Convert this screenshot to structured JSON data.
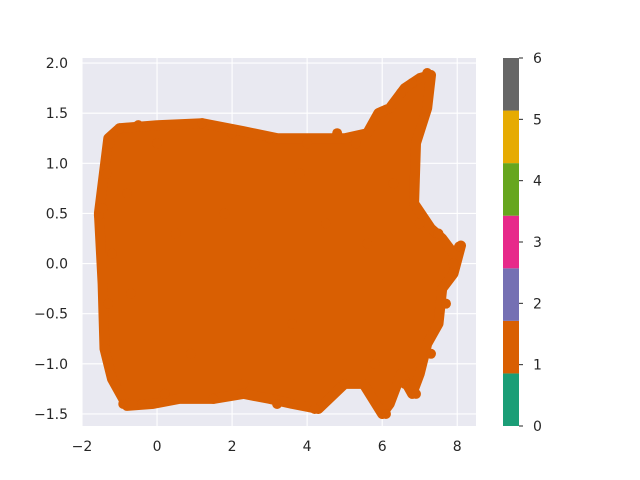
{
  "chart_data": {
    "type": "scatter",
    "title": "",
    "xlabel": "",
    "ylabel": "",
    "xlim": [
      -2,
      8.5
    ],
    "ylim": [
      -1.62,
      2.05
    ],
    "x_ticks": [
      -2,
      0,
      2,
      4,
      6,
      8
    ],
    "x_tick_labels": [
      "−2",
      "0",
      "2",
      "4",
      "6",
      "8"
    ],
    "y_ticks": [
      -1.5,
      -1.0,
      -0.5,
      0.0,
      0.5,
      1.0,
      1.5,
      2.0
    ],
    "y_tick_labels": [
      "−1.5",
      "−1.0",
      "−0.5",
      "0.0",
      "0.5",
      "1.0",
      "1.5",
      "2.0"
    ],
    "grid": true,
    "background": "#e9e9f1",
    "point_color": "#d95f02",
    "series": [
      {
        "class_value": 1,
        "color": "#d95f02",
        "description": "dense cloud of orange points",
        "points": [
          [
            -1.55,
            0.48
          ],
          [
            -1.45,
            0.55
          ],
          [
            -1.38,
            -0.85
          ],
          [
            -1.35,
            0.9
          ],
          [
            -1.3,
            -0.4
          ],
          [
            -1.25,
            1.2
          ],
          [
            -1.2,
            0.1
          ],
          [
            -1.1,
            -1.2
          ],
          [
            -1.0,
            1.35
          ],
          [
            -0.9,
            -1.4
          ],
          [
            -0.8,
            0.7
          ],
          [
            -0.7,
            -0.3
          ],
          [
            -0.5,
            1.38
          ],
          [
            -0.4,
            -1.4
          ],
          [
            0.0,
            1.2
          ],
          [
            0.2,
            -1.3
          ],
          [
            0.5,
            0.3
          ],
          [
            0.9,
            -0.9
          ],
          [
            1.2,
            1.4
          ],
          [
            1.5,
            -1.35
          ],
          [
            1.8,
            0.5
          ],
          [
            2.0,
            1.3
          ],
          [
            2.3,
            -1.2
          ],
          [
            2.6,
            0.0
          ],
          [
            3.0,
            1.25
          ],
          [
            3.2,
            -1.4
          ],
          [
            3.6,
            -0.6
          ],
          [
            3.8,
            0.9
          ],
          [
            4.0,
            1.2
          ],
          [
            4.2,
            -1.45
          ],
          [
            4.5,
            0.4
          ],
          [
            4.8,
            1.3
          ],
          [
            5.0,
            -1.2
          ],
          [
            5.3,
            1.2
          ],
          [
            5.6,
            0.2
          ],
          [
            5.8,
            -1.0
          ],
          [
            6.0,
            1.5
          ],
          [
            6.1,
            -1.5
          ],
          [
            6.3,
            0.8
          ],
          [
            6.5,
            1.7
          ],
          [
            6.6,
            -1.2
          ],
          [
            6.8,
            1.8
          ],
          [
            6.9,
            -1.3
          ],
          [
            7.0,
            0.4
          ],
          [
            7.2,
            1.9
          ],
          [
            7.3,
            -0.9
          ],
          [
            7.5,
            0.3
          ],
          [
            7.7,
            -0.4
          ],
          [
            7.9,
            0.0
          ],
          [
            8.05,
            0.17
          ]
        ]
      }
    ],
    "colorbar": {
      "ticks": [
        0,
        1,
        2,
        3,
        4,
        5,
        6
      ],
      "tick_labels": [
        "0",
        "1",
        "2",
        "3",
        "4",
        "5",
        "6"
      ],
      "range": [
        0,
        6
      ],
      "segments": [
        {
          "from": 0.0,
          "to": 0.857,
          "color": "#1b9e77"
        },
        {
          "from": 0.857,
          "to": 1.714,
          "color": "#d95f02"
        },
        {
          "from": 1.714,
          "to": 2.571,
          "color": "#7570b3"
        },
        {
          "from": 2.571,
          "to": 3.429,
          "color": "#e7298a"
        },
        {
          "from": 3.429,
          "to": 4.286,
          "color": "#66a61e"
        },
        {
          "from": 4.286,
          "to": 5.143,
          "color": "#e6ab02"
        },
        {
          "from": 5.143,
          "to": 6.0,
          "color": "#a6761d"
        },
        {
          "from": 5.143,
          "to": 6.0,
          "color": "#a6761d"
        }
      ],
      "top_segment": {
        "from": 5.143,
        "to": 6.0,
        "color": "#666666"
      }
    }
  }
}
